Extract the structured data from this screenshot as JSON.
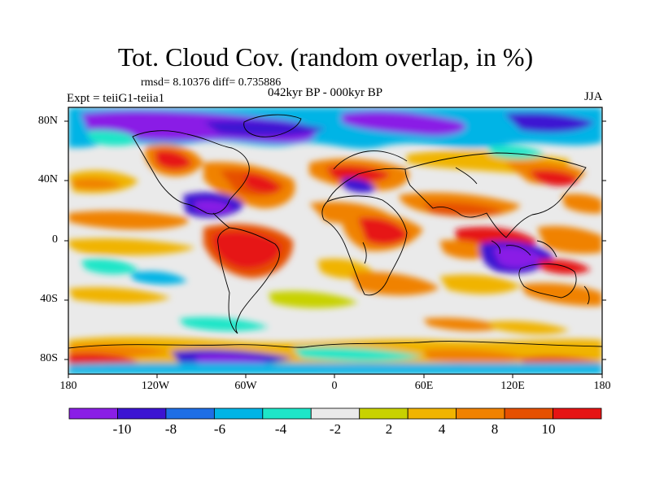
{
  "title": "Tot. Cloud Cov. (random overlap, in %)",
  "stats": "rmsd= 8.10376 diff= 0.735886",
  "subtitle": "042kyr BP - 000kyr BP",
  "experiment": "Expt = teiiG1-teiia1",
  "season": "JJA",
  "lat_labels": [
    "80N",
    "40N",
    "0",
    "40S",
    "80S"
  ],
  "lon_labels": [
    "180",
    "120W",
    "60W",
    "0",
    "60E",
    "120E",
    "180"
  ],
  "colorbar": {
    "labels": [
      "-10",
      "-8",
      "-6",
      "-4",
      "-2",
      "2",
      "4",
      "8",
      "10"
    ],
    "colors": [
      "#8a1ee6",
      "#3c14d2",
      "#1e6ee6",
      "#00b4e6",
      "#1ee6c8",
      "#eaeaea",
      "#c8d200",
      "#f0b400",
      "#f08200",
      "#e65000",
      "#e61414"
    ]
  }
}
